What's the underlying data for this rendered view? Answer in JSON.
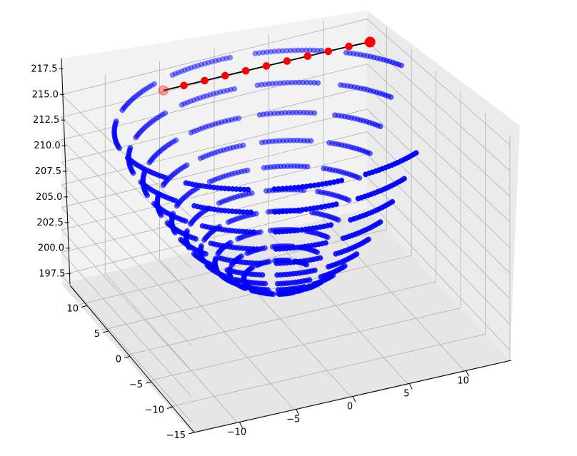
{
  "chart_data": {
    "type": "scatter3d",
    "title": "",
    "xlabel": "",
    "ylabel": "",
    "zlabel": "",
    "x_ticks": [
      "−10",
      "−5",
      "0",
      "5",
      "10"
    ],
    "y_ticks": [
      "−15",
      "−10",
      "−5",
      "0",
      "5",
      "10"
    ],
    "z_ticks": [
      "197.5",
      "200.0",
      "202.5",
      "205.0",
      "207.5",
      "210.0",
      "212.5",
      "215.0",
      "217.5"
    ],
    "xlim": [
      -14,
      14
    ],
    "ylim": [
      -15,
      14
    ],
    "zlim": [
      196.5,
      218.5
    ],
    "grid": true,
    "surface": {
      "description_series": "paraboloid samples",
      "color": "#0000ff",
      "center": [
        0,
        0
      ],
      "vertex_z": 200.0,
      "curvature": 0.09,
      "radii": [
        3,
        4.2,
        5.4,
        6.6,
        7.8,
        9,
        10.2,
        11.4,
        12.6,
        13.8
      ],
      "arc_start_deg": 20,
      "arc_end_deg": 310,
      "arcs_per_ring": 9
    },
    "path": {
      "color": "#ff0000",
      "line_color": "#000000",
      "points": [
        {
          "x": 13.6,
          "y": 12.5,
          "z": 215.8
        },
        {
          "x": 11.8,
          "y": 12.8,
          "z": 215.7
        },
        {
          "x": 10.0,
          "y": 13.0,
          "z": 215.6
        },
        {
          "x": 8.2,
          "y": 13.2,
          "z": 215.5
        },
        {
          "x": 6.4,
          "y": 13.4,
          "z": 215.4
        },
        {
          "x": 4.6,
          "y": 13.6,
          "z": 215.3
        },
        {
          "x": 2.8,
          "y": 13.8,
          "z": 215.2
        },
        {
          "x": 1.0,
          "y": 14.0,
          "z": 215.1
        },
        {
          "x": -0.8,
          "y": 14.2,
          "z": 215.0
        },
        {
          "x": -2.6,
          "y": 14.4,
          "z": 214.9
        },
        {
          "x": -4.4,
          "y": 14.6,
          "z": 214.8
        }
      ]
    }
  }
}
